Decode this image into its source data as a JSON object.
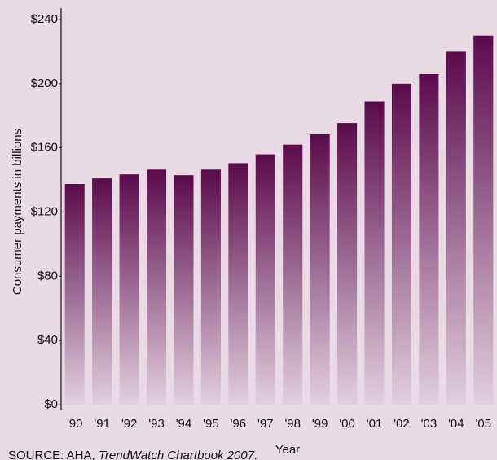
{
  "chart_data": {
    "type": "bar",
    "y_label": "Consumer payments in billions",
    "x_label": "Year",
    "source": "SOURCE: AHA, ",
    "source_title": "TrendWatch Chartbook 2007.",
    "categories": [
      "'90",
      "'91",
      "'92",
      "'93",
      "'94",
      "'95",
      "'96",
      "'97",
      "'98",
      "'99",
      "'00",
      "'01",
      "'02",
      "'03",
      "'04",
      "'05"
    ],
    "values": [
      137.5,
      141,
      143.5,
      146.5,
      143,
      146.5,
      150.5,
      156,
      162,
      168.5,
      175.5,
      189,
      200,
      206,
      220,
      230
    ],
    "color": "#5b0a4c",
    "ylim": [
      0,
      240
    ],
    "yticks": [
      {
        "value": 0,
        "label": "$0"
      },
      {
        "value": 40,
        "label": "$40"
      },
      {
        "value": 80,
        "label": "$80"
      },
      {
        "value": 120,
        "label": "$120"
      },
      {
        "value": 160,
        "label": "$160"
      },
      {
        "value": 200,
        "label": "$200"
      },
      {
        "value": 240,
        "label": "$240"
      }
    ]
  }
}
